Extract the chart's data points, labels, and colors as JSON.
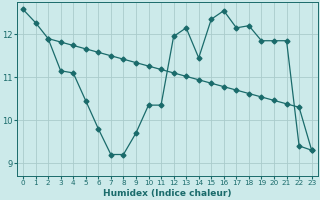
{
  "xlabel": "Humidex (Indice chaleur)",
  "bg_color": "#cceaea",
  "grid_color": "#aacccc",
  "line_color": "#1a6b6b",
  "markersize": 2.5,
  "xlim": [
    -0.5,
    23.5
  ],
  "ylim": [
    8.7,
    12.75
  ],
  "xticks": [
    0,
    1,
    2,
    3,
    4,
    5,
    6,
    7,
    8,
    9,
    10,
    11,
    12,
    13,
    14,
    15,
    16,
    17,
    18,
    19,
    20,
    21,
    22,
    23
  ],
  "yticks": [
    9,
    10,
    11,
    12
  ],
  "line1_x": [
    0,
    1,
    2,
    3,
    4,
    5,
    6,
    7,
    8,
    9,
    10,
    11,
    12,
    13,
    14,
    15,
    16,
    17,
    18,
    19,
    20,
    21,
    22,
    23
  ],
  "line1_y": [
    12.58,
    12.27,
    11.9,
    11.15,
    11.1,
    10.45,
    9.8,
    9.2,
    9.2,
    9.7,
    10.35,
    10.35,
    11.95,
    12.15,
    11.45,
    12.35,
    12.55,
    12.15,
    12.2,
    11.85,
    11.85,
    11.85,
    9.4,
    9.3
  ],
  "line2_x": [
    2,
    3,
    4,
    5,
    6,
    7,
    8,
    9,
    10,
    11,
    12,
    13,
    14,
    15,
    16,
    17,
    18,
    19,
    20,
    21,
    22,
    23
  ],
  "line2_y": [
    11.9,
    11.82,
    11.74,
    11.66,
    11.58,
    11.5,
    11.42,
    11.34,
    11.26,
    11.18,
    11.1,
    11.02,
    10.94,
    10.86,
    10.78,
    10.7,
    10.62,
    10.54,
    10.46,
    10.38,
    10.3,
    9.3
  ]
}
